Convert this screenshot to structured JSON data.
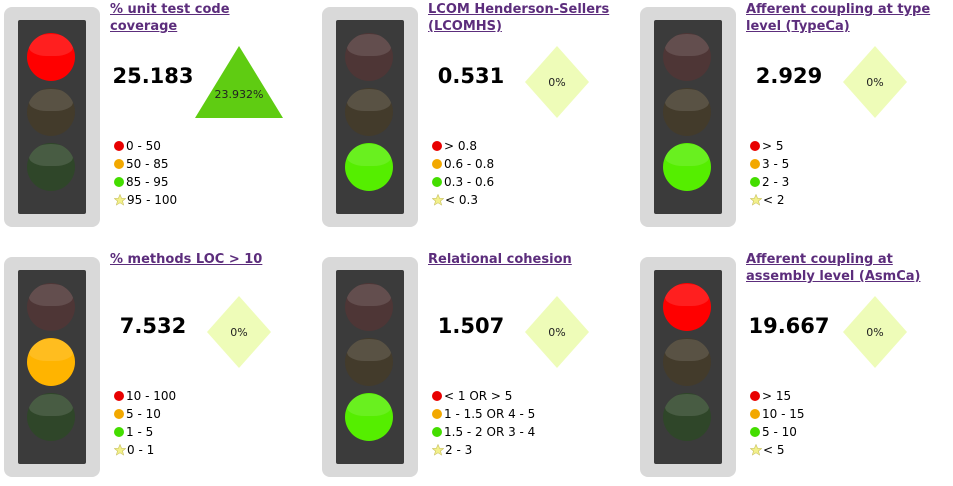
{
  "colors": {
    "red_on": "#ff0000",
    "amber_on": "#ffb400",
    "green_on": "#55ee00",
    "red_off": "#4e3636",
    "amber_off": "#433b2b",
    "green_off": "#2f4629",
    "dot_red": "#e80000",
    "dot_orange": "#f2a800",
    "dot_green": "#44dd00",
    "star": "#f2f08a",
    "triangle": "#5fcc12",
    "diamond": "#eefcb8"
  },
  "metrics": [
    {
      "title": "% unit test code coverage",
      "value": "25.183",
      "indicator_shape": "triangle-up",
      "indicator_text": "23.932%",
      "active_light": "red",
      "legend": [
        {
          "icon": "red-dot",
          "text": "0 - 50"
        },
        {
          "icon": "orange-dot",
          "text": "50 - 85"
        },
        {
          "icon": "green-dot",
          "text": "85 - 95"
        },
        {
          "icon": "star",
          "text": "95 - 100"
        }
      ]
    },
    {
      "title": "LCOM Henderson-Sellers (LCOMHS)",
      "value": "0.531",
      "indicator_shape": "diamond",
      "indicator_text": "0%",
      "active_light": "green",
      "legend": [
        {
          "icon": "red-dot",
          "text": "> 0.8"
        },
        {
          "icon": "orange-dot",
          "text": "0.6 - 0.8"
        },
        {
          "icon": "green-dot",
          "text": "0.3 - 0.6"
        },
        {
          "icon": "star",
          "text": "< 0.3"
        }
      ]
    },
    {
      "title": "Afferent coupling at type level (TypeCa)",
      "value": "2.929",
      "indicator_shape": "diamond",
      "indicator_text": "0%",
      "active_light": "green",
      "legend": [
        {
          "icon": "red-dot",
          "text": "> 5"
        },
        {
          "icon": "orange-dot",
          "text": "3 - 5"
        },
        {
          "icon": "green-dot",
          "text": "2 - 3"
        },
        {
          "icon": "star",
          "text": "< 2"
        }
      ]
    },
    {
      "title": "% methods LOC > 10",
      "value": "7.532",
      "indicator_shape": "diamond",
      "indicator_text": "0%",
      "active_light": "amber",
      "legend": [
        {
          "icon": "red-dot",
          "text": "10 - 100"
        },
        {
          "icon": "orange-dot",
          "text": "5 - 10"
        },
        {
          "icon": "green-dot",
          "text": "1 - 5"
        },
        {
          "icon": "star",
          "text": "0 - 1"
        }
      ]
    },
    {
      "title": "Relational cohesion",
      "value": "1.507",
      "indicator_shape": "diamond",
      "indicator_text": "0%",
      "active_light": "green",
      "legend": [
        {
          "icon": "red-dot",
          "text": "< 1 OR > 5"
        },
        {
          "icon": "orange-dot",
          "text": "1 - 1.5 OR 4 - 5"
        },
        {
          "icon": "green-dot",
          "text": "1.5 - 2 OR 3 - 4"
        },
        {
          "icon": "star",
          "text": "2 - 3"
        }
      ]
    },
    {
      "title": "Afferent coupling at assembly level (AsmCa)",
      "value": "19.667",
      "indicator_shape": "diamond",
      "indicator_text": "0%",
      "active_light": "red",
      "legend": [
        {
          "icon": "red-dot",
          "text": "> 15"
        },
        {
          "icon": "orange-dot",
          "text": "10 - 15"
        },
        {
          "icon": "green-dot",
          "text": "5 - 10"
        },
        {
          "icon": "star",
          "text": "< 5"
        }
      ]
    }
  ]
}
